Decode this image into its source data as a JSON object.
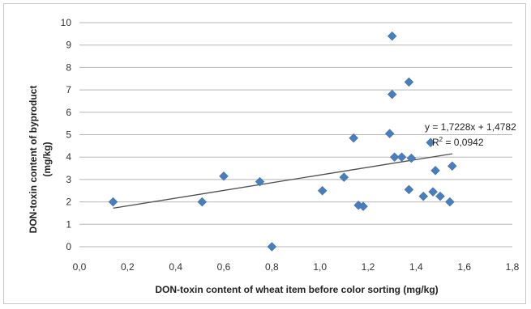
{
  "chart_data": {
    "type": "scatter",
    "title": "",
    "xlabel": "DON-toxin content of wheat item before color sorting (mg/kg)",
    "ylabel": "DON-toxin content of byproduct (mg/kg)",
    "ylabel_lines": [
      "DON-toxin content of byproduct",
      "(mg/kg)"
    ],
    "xlim": [
      0,
      1.8
    ],
    "ylim": [
      0,
      10
    ],
    "x_ticks": [
      "0,0",
      "0,2",
      "0,4",
      "0,6",
      "0,8",
      "1,0",
      "1,2",
      "1,4",
      "1,6",
      "1,8"
    ],
    "y_ticks": [
      "0",
      "1",
      "2",
      "3",
      "4",
      "5",
      "6",
      "7",
      "8",
      "9",
      "10"
    ],
    "grid": "horizontal",
    "marker_color": "#4a7ebb",
    "trendline_color": "#4d4d4d",
    "points": [
      {
        "x": 0.14,
        "y": 2.0
      },
      {
        "x": 0.51,
        "y": 2.0
      },
      {
        "x": 0.6,
        "y": 3.15
      },
      {
        "x": 0.75,
        "y": 2.9
      },
      {
        "x": 0.8,
        "y": 0.0
      },
      {
        "x": 1.01,
        "y": 2.5
      },
      {
        "x": 1.1,
        "y": 3.1
      },
      {
        "x": 1.14,
        "y": 4.85
      },
      {
        "x": 1.16,
        "y": 1.85
      },
      {
        "x": 1.18,
        "y": 1.8
      },
      {
        "x": 1.29,
        "y": 5.05
      },
      {
        "x": 1.3,
        "y": 9.4
      },
      {
        "x": 1.3,
        "y": 6.8
      },
      {
        "x": 1.31,
        "y": 4.0
      },
      {
        "x": 1.34,
        "y": 4.0
      },
      {
        "x": 1.37,
        "y": 7.35
      },
      {
        "x": 1.37,
        "y": 2.55
      },
      {
        "x": 1.38,
        "y": 3.95
      },
      {
        "x": 1.43,
        "y": 2.25
      },
      {
        "x": 1.46,
        "y": 4.65
      },
      {
        "x": 1.47,
        "y": 2.45
      },
      {
        "x": 1.48,
        "y": 3.4
      },
      {
        "x": 1.5,
        "y": 2.25
      },
      {
        "x": 1.54,
        "y": 2.0
      },
      {
        "x": 1.55,
        "y": 3.6
      }
    ],
    "trendline": {
      "slope": 1.7228,
      "intercept": 1.4782,
      "x_range": [
        0.14,
        1.55
      ]
    },
    "equation_text": "y = 1,7228x + 1,4782",
    "r2_label": "R",
    "r2_exponent": "2",
    "r2_value": " = 0,0942"
  }
}
